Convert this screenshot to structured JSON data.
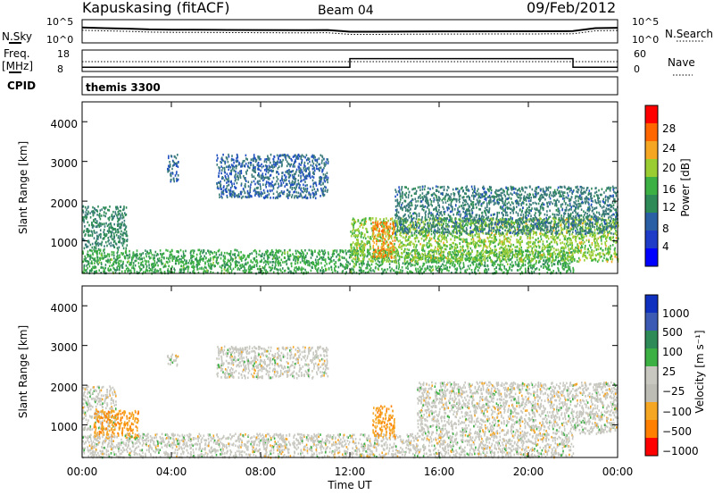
{
  "header": {
    "station": "Kapuskasing (fitACF)",
    "beam": "Beam 04",
    "date": "09/Feb/2012"
  },
  "strips": {
    "nsky_label": "N.Sky",
    "nsky_ticks": [
      "10^5",
      "10^0"
    ],
    "nsearch_label": "N.Search",
    "nsearch_ticks": [
      "10^5",
      "10^0"
    ],
    "freq_label_1": "Freq.",
    "freq_label_2": "[MHz]",
    "freq_ticks": [
      "18",
      "8"
    ],
    "nave_label": "Nave",
    "nave_ticks": [
      "60",
      "0"
    ],
    "cpid_label": "CPID",
    "cpid_name": "themis 3300"
  },
  "panels": {
    "ylabel": "Slant Range [km]",
    "y_ticks": [
      "1000",
      "2000",
      "3000",
      "4000"
    ],
    "x_ticks": [
      "00:00",
      "04:00",
      "08:00",
      "12:00",
      "16:00",
      "20:00",
      "00:00"
    ],
    "xlabel": "Time UT"
  },
  "colorbars": {
    "power_label": "Power [dB]",
    "power_ticks": [
      "4",
      "8",
      "12",
      "16",
      "20",
      "24",
      "28"
    ],
    "velocity_label": "Velocity  [m s⁻¹]",
    "velocity_ticks": [
      "1000",
      "500",
      "100",
      "25",
      "−25",
      "−100",
      "−500",
      "−1000"
    ]
  },
  "chart_data": [
    {
      "type": "line",
      "title": "N.Sky / N.Search",
      "y_scale": "log",
      "ylim": [
        1,
        100000
      ],
      "x_unit": "hours UT",
      "xlim": [
        0,
        24
      ],
      "series": [
        {
          "x": [
            0,
            1,
            2,
            3,
            4,
            5,
            6,
            8,
            10,
            11,
            12,
            13,
            16,
            20,
            22,
            23,
            24
          ],
          "y": [
            2000,
            1500,
            1200,
            800,
            700,
            700,
            650,
            600,
            550,
            600,
            250,
            250,
            300,
            320,
            350,
            1500,
            1800
          ]
        }
      ]
    },
    {
      "type": "line",
      "title": "Freq. [MHz] / Nave",
      "ylim": [
        8,
        18
      ],
      "x_unit": "hours UT",
      "xlim": [
        0,
        24
      ],
      "series": [
        {
          "x": [
            0,
            12,
            12,
            22,
            22,
            24
          ],
          "y": [
            10,
            10,
            14,
            14,
            10,
            10
          ]
        }
      ]
    },
    {
      "type": "heatmap",
      "title": "Power [dB]",
      "xlabel": "Time UT",
      "ylabel": "Slant Range [km]",
      "xlim": [
        0,
        24
      ],
      "ylim": [
        180,
        4500
      ],
      "colorbar_range": [
        0,
        30
      ],
      "regions": [
        {
          "t0": 0,
          "t1": 2,
          "r0": 800,
          "r1": 1900,
          "level": 10
        },
        {
          "t0": 3.8,
          "t1": 4.3,
          "r0": 2500,
          "r1": 3200,
          "level": 6
        },
        {
          "t0": 6,
          "t1": 11,
          "r0": 2100,
          "r1": 3200,
          "level": 6
        },
        {
          "t0": 0,
          "t1": 22,
          "r0": 200,
          "r1": 800,
          "level": 14
        },
        {
          "t0": 12,
          "t1": 24,
          "r0": 500,
          "r1": 1600,
          "level": 18
        },
        {
          "t0": 13,
          "t1": 14,
          "r0": 600,
          "r1": 1500,
          "level": 24
        },
        {
          "t0": 14,
          "t1": 24,
          "r0": 1200,
          "r1": 2400,
          "level": 8
        }
      ]
    },
    {
      "type": "heatmap",
      "title": "Velocity [m s-1]",
      "xlabel": "Time UT",
      "ylabel": "Slant Range [km]",
      "xlim": [
        0,
        24
      ],
      "ylim": [
        180,
        4500
      ],
      "colorbar_range": [
        -1000,
        1000
      ],
      "regions": [
        {
          "t0": 0,
          "t1": 1.5,
          "r0": 900,
          "r1": 2000,
          "level": 0
        },
        {
          "t0": 0.5,
          "t1": 2.5,
          "r0": 700,
          "r1": 1400,
          "level": -300
        },
        {
          "t0": 3.8,
          "t1": 4.3,
          "r0": 2500,
          "r1": 2800,
          "level": 0
        },
        {
          "t0": 6,
          "t1": 11,
          "r0": 2200,
          "r1": 3000,
          "level": 0
        },
        {
          "t0": 0,
          "t1": 22,
          "r0": 200,
          "r1": 800,
          "level": 0
        },
        {
          "t0": 13,
          "t1": 14,
          "r0": 700,
          "r1": 1500,
          "level": -200
        },
        {
          "t0": 15,
          "t1": 24,
          "r0": 800,
          "r1": 2100,
          "level": 0
        }
      ]
    }
  ]
}
